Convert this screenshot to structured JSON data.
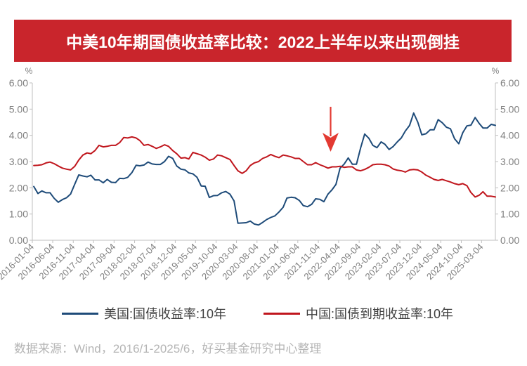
{
  "colors": {
    "title_banner": "#c9252c",
    "arrow": "#e33a32"
  },
  "chart_data": {
    "type": "line",
    "title": "中美10年期国债收益率比较：2022上半年以来出现倒挂",
    "y_unit_left": "%",
    "y_unit_right": "%",
    "y_axes": [
      "left",
      "right"
    ],
    "ylim": [
      0,
      6
    ],
    "yticks": [
      "0.00",
      "1.00",
      "2.00",
      "3.00",
      "4.00",
      "5.00",
      "6.00"
    ],
    "xlim": [
      "2016-01-04",
      "2025-06"
    ],
    "xticks": [
      "2016-01-04",
      "2016-06-04",
      "2016-11-04",
      "2017-04-04",
      "2017-09-04",
      "2018-02-04",
      "2018-07-04",
      "2018-12-04",
      "2019-05-04",
      "2019-10-04",
      "2020-03-04",
      "2020-08-04",
      "2021-01-04",
      "2021-06-04",
      "2021-11-04",
      "2022-04-04",
      "2022-09-04",
      "2023-02-04",
      "2023-07-04",
      "2023-12-04",
      "2024-05-04",
      "2024-10-04",
      "2025-03-04"
    ],
    "grid": false,
    "legend_position": "bottom",
    "x": [
      "2016-01",
      "2016-02",
      "2016-03",
      "2016-04",
      "2016-05",
      "2016-06",
      "2016-07",
      "2016-08",
      "2016-09",
      "2016-10",
      "2016-11",
      "2016-12",
      "2017-01",
      "2017-02",
      "2017-03",
      "2017-04",
      "2017-05",
      "2017-06",
      "2017-07",
      "2017-08",
      "2017-09",
      "2017-10",
      "2017-11",
      "2017-12",
      "2018-01",
      "2018-02",
      "2018-03",
      "2018-04",
      "2018-05",
      "2018-06",
      "2018-07",
      "2018-08",
      "2018-09",
      "2018-10",
      "2018-11",
      "2018-12",
      "2019-01",
      "2019-02",
      "2019-03",
      "2019-04",
      "2019-05",
      "2019-06",
      "2019-07",
      "2019-08",
      "2019-09",
      "2019-10",
      "2019-11",
      "2019-12",
      "2020-01",
      "2020-02",
      "2020-03",
      "2020-04",
      "2020-05",
      "2020-06",
      "2020-07",
      "2020-08",
      "2020-09",
      "2020-10",
      "2020-11",
      "2020-12",
      "2021-01",
      "2021-02",
      "2021-03",
      "2021-04",
      "2021-05",
      "2021-06",
      "2021-07",
      "2021-08",
      "2021-09",
      "2021-10",
      "2021-11",
      "2021-12",
      "2022-01",
      "2022-02",
      "2022-03",
      "2022-04",
      "2022-05",
      "2022-06",
      "2022-07",
      "2022-08",
      "2022-09",
      "2022-10",
      "2022-11",
      "2022-12",
      "2023-01",
      "2023-02",
      "2023-03",
      "2023-04",
      "2023-05",
      "2023-06",
      "2023-07",
      "2023-08",
      "2023-09",
      "2023-10",
      "2023-11",
      "2023-12",
      "2024-01",
      "2024-02",
      "2024-03",
      "2024-04",
      "2024-05",
      "2024-06",
      "2024-07",
      "2024-08",
      "2024-09",
      "2024-10",
      "2024-11",
      "2024-12",
      "2025-01",
      "2025-02",
      "2025-03",
      "2025-04",
      "2025-05",
      "2025-06"
    ],
    "series": [
      {
        "name": "美国:国债收益率:10年",
        "color": "#1e4b79",
        "values": [
          2.05,
          1.78,
          1.88,
          1.81,
          1.81,
          1.6,
          1.45,
          1.55,
          1.62,
          1.76,
          2.14,
          2.49,
          2.45,
          2.42,
          2.48,
          2.3,
          2.3,
          2.19,
          2.32,
          2.21,
          2.2,
          2.36,
          2.35,
          2.4,
          2.58,
          2.86,
          2.84,
          2.87,
          2.98,
          2.91,
          2.89,
          2.89,
          3.0,
          3.2,
          3.12,
          2.83,
          2.71,
          2.68,
          2.57,
          2.53,
          2.4,
          2.07,
          2.06,
          1.63,
          1.7,
          1.71,
          1.81,
          1.86,
          1.76,
          1.5,
          0.65,
          0.66,
          0.67,
          0.73,
          0.62,
          0.58,
          0.68,
          0.79,
          0.87,
          0.93,
          1.08,
          1.26,
          1.61,
          1.64,
          1.62,
          1.52,
          1.32,
          1.28,
          1.37,
          1.58,
          1.56,
          1.47,
          1.76,
          1.93,
          2.13,
          2.75,
          2.9,
          3.14,
          2.9,
          2.9,
          3.52,
          4.05,
          3.89,
          3.62,
          3.53,
          3.75,
          3.66,
          3.46,
          3.57,
          3.75,
          3.9,
          4.17,
          4.38,
          4.85,
          4.5,
          4.02,
          4.06,
          4.21,
          4.21,
          4.6,
          4.48,
          4.31,
          4.25,
          3.87,
          3.68,
          4.1,
          4.36,
          4.39,
          4.68,
          4.45,
          4.28,
          4.28,
          4.42,
          4.38
        ]
      },
      {
        "name": "中国:国债到期收益率:10年",
        "color": "#c0161d",
        "values": [
          2.85,
          2.86,
          2.88,
          2.95,
          2.98,
          2.92,
          2.83,
          2.75,
          2.71,
          2.68,
          2.82,
          3.06,
          3.25,
          3.33,
          3.3,
          3.42,
          3.62,
          3.56,
          3.58,
          3.62,
          3.62,
          3.72,
          3.92,
          3.9,
          3.94,
          3.9,
          3.8,
          3.62,
          3.65,
          3.58,
          3.5,
          3.56,
          3.64,
          3.58,
          3.42,
          3.3,
          3.13,
          3.15,
          3.1,
          3.35,
          3.3,
          3.25,
          3.17,
          3.05,
          3.1,
          3.25,
          3.22,
          3.15,
          3.08,
          2.85,
          2.65,
          2.55,
          2.65,
          2.85,
          2.95,
          3.0,
          3.12,
          3.18,
          3.27,
          3.2,
          3.15,
          3.25,
          3.22,
          3.18,
          3.12,
          3.12,
          3.0,
          2.88,
          2.88,
          2.96,
          2.88,
          2.82,
          2.75,
          2.8,
          2.8,
          2.82,
          2.78,
          2.8,
          2.8,
          2.68,
          2.65,
          2.7,
          2.78,
          2.88,
          2.9,
          2.9,
          2.88,
          2.83,
          2.72,
          2.67,
          2.65,
          2.6,
          2.68,
          2.7,
          2.68,
          2.6,
          2.48,
          2.4,
          2.32,
          2.28,
          2.32,
          2.27,
          2.22,
          2.16,
          2.12,
          2.16,
          2.08,
          1.82,
          1.65,
          1.72,
          1.85,
          1.68,
          1.68,
          1.65
        ]
      }
    ],
    "source_note": "数据来源：Wind，2016/1-2025/6，好买基金研究中心整理"
  }
}
